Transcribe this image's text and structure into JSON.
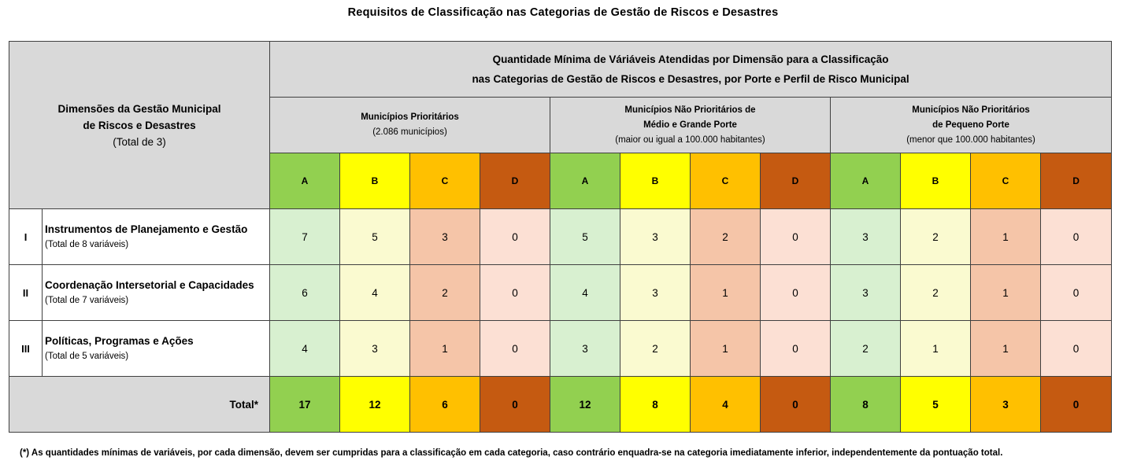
{
  "title": "Requisitos de Classificação  nas Categorias de Gestão de Riscos e Desastres",
  "dimensions_header": {
    "line1": "Dimensões da Gestão Municipal",
    "line2": "de Riscos e Desastres",
    "line3": "(Total de 3)"
  },
  "main_header": {
    "line1": "Quantidade Mínima de Váriáveis Atendidas por Dimensão para a Classificação",
    "line2": "nas Categorias de Gestão de Riscos e Desastres,  por Porte e Perfil de Risco Municipal"
  },
  "groups": [
    {
      "line1": "Municípios Prioritários",
      "line2": "",
      "line3": "(2.086 municípios)"
    },
    {
      "line1": "Municípios Não Prioritários de",
      "line2": "Médio e Grande Porte",
      "line3": "(maior ou igual a 100.000 habitantes)"
    },
    {
      "line1": "Municípios Não Prioritários",
      "line2": "de Pequeno Porte",
      "line3": "(menor que 100.000 habitantes)"
    }
  ],
  "categories": [
    "A",
    "B",
    "C",
    "D",
    "A",
    "B",
    "C",
    "D",
    "A",
    "B",
    "C",
    "D"
  ],
  "rows": [
    {
      "roman": "I",
      "name": "Instrumentos de Planejamento e Gestão",
      "sub": "(Total de 8 variáveis)",
      "values": [
        "7",
        "5",
        "3",
        "0",
        "5",
        "3",
        "2",
        "0",
        "3",
        "2",
        "1",
        "0"
      ]
    },
    {
      "roman": "II",
      "name": "Coordenação Intersetorial e Capacidades",
      "sub": "(Total de 7 variáveis)",
      "values": [
        "6",
        "4",
        "2",
        "0",
        "4",
        "3",
        "1",
        "0",
        "3",
        "2",
        "1",
        "0"
      ]
    },
    {
      "roman": "III",
      "name": "Políticas, Programas e Ações",
      "sub": "(Total de 5 variáveis)",
      "values": [
        "4",
        "3",
        "1",
        "0",
        "3",
        "2",
        "1",
        "0",
        "2",
        "1",
        "1",
        "0"
      ]
    }
  ],
  "total": {
    "label": "Total*",
    "values": [
      "17",
      "12",
      "6",
      "0",
      "12",
      "8",
      "4",
      "0",
      "8",
      "5",
      "3",
      "0"
    ]
  },
  "footnote": "(*)  As quantidades mínimas de variáveis, por cada dimensão, devem ser cumpridas para a classificação em cada categoria, caso contrário enquadra-se na categoria imediatamente inferior, independentemente da pontuação total.",
  "colors": {
    "A": "#92d050",
    "B": "#ffff00",
    "C": "#ffc000",
    "D": "#c55a11",
    "A_light": "#d8f0d0",
    "B_light": "#fafad0",
    "C_light": "#f5c5a8",
    "D_light": "#fce0d4",
    "header_gray": "#d9d9d9"
  }
}
